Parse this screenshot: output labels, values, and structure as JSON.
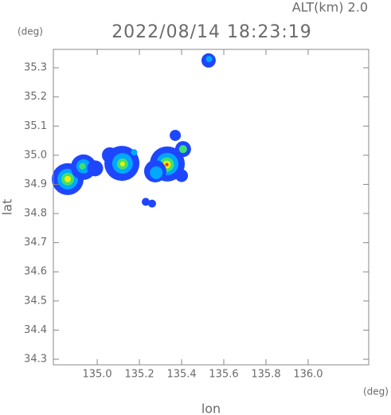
{
  "chart_data": {
    "type": "scatter",
    "title": "2022/08/14 18:23:19",
    "subtitle": "ALT(km)  2.0",
    "x_label": "lon",
    "y_label": "lat",
    "x_unit": "(deg)",
    "y_unit": "(deg)",
    "xlim": [
      134.792,
      136.287
    ],
    "ylim": [
      34.281,
      35.363
    ],
    "xticks": [
      {
        "value": 135,
        "label": "135.0"
      },
      135.2,
      135.4,
      135.6,
      135.8,
      {
        "value": 136,
        "label": "136.0"
      }
    ],
    "yticks": [
      34.3,
      34.4,
      34.5,
      34.6,
      34.7,
      34.8,
      34.9,
      {
        "value": 35,
        "label": "35.0"
      },
      35.1,
      35.2,
      35.3
    ],
    "x": [
      135.528,
      135.53,
      134.86,
      134.86,
      134.86,
      134.86,
      134.935,
      134.935,
      134.93,
      134.99,
      135.06,
      135.117,
      135.12,
      135.12,
      135.12,
      135.175,
      135.332,
      135.332,
      135.33,
      135.33,
      135.33,
      135.275,
      135.28,
      135.407,
      135.407,
      135.37,
      135.23,
      135.26,
      135.4
    ],
    "y": [
      35.325,
      35.33,
      34.918,
      34.918,
      34.918,
      34.918,
      34.959,
      34.962,
      34.962,
      34.955,
      35.0,
      34.972,
      34.972,
      34.97,
      34.97,
      35.01,
      34.97,
      34.97,
      34.968,
      34.968,
      34.968,
      34.945,
      34.94,
      35.021,
      35.021,
      35.068,
      34.84,
      34.834,
      34.93
    ],
    "sizes": [
      9,
      4,
      20,
      13,
      8,
      4,
      16,
      9,
      4,
      10,
      10,
      22,
      13,
      7,
      3,
      4,
      22,
      14,
      9,
      5,
      2,
      14,
      8,
      10,
      5,
      7,
      5,
      5,
      8
    ],
    "colors": [
      "#1e46ff",
      "#00a8ff",
      "#1e46ff",
      "#00a8ff",
      "#40e070",
      "#f0f000",
      "#1e46ff",
      "#00a8ff",
      "#40e070",
      "#1e46ff",
      "#1e46ff",
      "#1e46ff",
      "#00a8ff",
      "#40e070",
      "#f0f000",
      "#00a8ff",
      "#1e46ff",
      "#00a8ff",
      "#40e070",
      "#f0f000",
      "#ff3000",
      "#1e46ff",
      "#00a8ff",
      "#1e46ff",
      "#40e070",
      "#1e46ff",
      "#1e46ff",
      "#1e46ff",
      "#1e46ff"
    ]
  }
}
